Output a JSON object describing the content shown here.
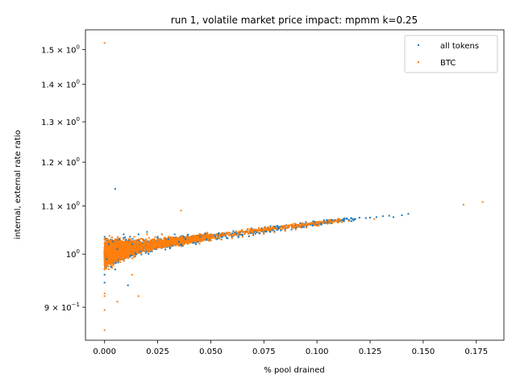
{
  "chart_data": {
    "type": "scatter",
    "title": "run 1, volatile market price impact: mpmm k=0.25",
    "xlabel": "% pool drained",
    "ylabel": "internal, external rate ratio",
    "xlim": [
      -0.009,
      0.188
    ],
    "ylim": [
      0.843,
      1.56
    ],
    "yscale": "log",
    "grid": false,
    "legend_position": "upper right",
    "x_ticks": [
      {
        "value": 0.0,
        "label": "0.000"
      },
      {
        "value": 0.025,
        "label": "0.025"
      },
      {
        "value": 0.05,
        "label": "0.050"
      },
      {
        "value": 0.075,
        "label": "0.075"
      },
      {
        "value": 0.1,
        "label": "0.100"
      },
      {
        "value": 0.125,
        "label": "0.125"
      },
      {
        "value": 0.15,
        "label": "0.150"
      },
      {
        "value": 0.175,
        "label": "0.175"
      }
    ],
    "y_ticks": [
      {
        "value": 0.9,
        "base": "9",
        "exp": "−1"
      },
      {
        "value": 1.0,
        "base": "10",
        "exp": "0"
      },
      {
        "value": 1.1,
        "base": "1.1",
        "exp": "0"
      },
      {
        "value": 1.2,
        "base": "1.2",
        "exp": "0"
      },
      {
        "value": 1.3,
        "base": "1.3",
        "exp": "0"
      },
      {
        "value": 1.4,
        "base": "1.4",
        "exp": "0"
      },
      {
        "value": 1.5,
        "base": "1.5",
        "exp": "0"
      }
    ],
    "series": [
      {
        "name": "all tokens",
        "color": "#1f77b4",
        "points": [
          [
            0.0,
            1.0
          ],
          [
            0.0,
            0.96
          ],
          [
            0.0,
            1.035
          ],
          [
            0.0,
            0.945
          ],
          [
            0.0,
            1.03
          ],
          [
            0.001,
            0.99
          ],
          [
            0.002,
            1.02
          ],
          [
            0.003,
            0.975
          ],
          [
            0.004,
            1.025
          ],
          [
            0.005,
            1.138
          ],
          [
            0.005,
            0.97
          ],
          [
            0.006,
            1.01
          ],
          [
            0.007,
            1.03
          ],
          [
            0.008,
            0.99
          ],
          [
            0.009,
            1.04
          ],
          [
            0.01,
            1.0
          ],
          [
            0.011,
            0.94
          ],
          [
            0.012,
            1.035
          ],
          [
            0.013,
            1.02
          ],
          [
            0.015,
            1.0
          ],
          [
            0.016,
            1.04
          ],
          [
            0.018,
            1.03
          ],
          [
            0.02,
            1.045
          ],
          [
            0.022,
            1.02
          ],
          [
            0.025,
            1.035
          ],
          [
            0.027,
            1.04
          ],
          [
            0.03,
            1.03
          ],
          [
            0.033,
            1.04
          ],
          [
            0.035,
            1.025
          ],
          [
            0.038,
            1.03
          ],
          [
            0.04,
            1.03
          ],
          [
            0.043,
            1.02
          ],
          [
            0.045,
            1.035
          ],
          [
            0.048,
            1.03
          ],
          [
            0.05,
            1.028
          ],
          [
            0.053,
            1.03
          ],
          [
            0.055,
            1.03
          ],
          [
            0.058,
            1.032
          ],
          [
            0.06,
            1.035
          ],
          [
            0.063,
            1.034
          ],
          [
            0.065,
            1.038
          ],
          [
            0.068,
            1.036
          ],
          [
            0.07,
            1.04
          ],
          [
            0.073,
            1.042
          ],
          [
            0.075,
            1.042
          ],
          [
            0.078,
            1.045
          ],
          [
            0.08,
            1.046
          ],
          [
            0.083,
            1.048
          ],
          [
            0.085,
            1.05
          ],
          [
            0.088,
            1.05
          ],
          [
            0.09,
            1.053
          ],
          [
            0.093,
            1.055
          ],
          [
            0.095,
            1.056
          ],
          [
            0.098,
            1.058
          ],
          [
            0.1,
            1.06
          ],
          [
            0.102,
            1.062
          ],
          [
            0.105,
            1.065
          ],
          [
            0.107,
            1.07
          ],
          [
            0.11,
            1.066
          ],
          [
            0.112,
            1.07
          ],
          [
            0.115,
            1.07
          ],
          [
            0.118,
            1.072
          ],
          [
            0.12,
            1.075
          ],
          [
            0.123,
            1.074
          ],
          [
            0.125,
            1.075
          ],
          [
            0.128,
            1.076
          ],
          [
            0.131,
            1.078
          ],
          [
            0.134,
            1.079
          ],
          [
            0.136,
            1.076
          ],
          [
            0.14,
            1.08
          ],
          [
            0.143,
            1.083
          ]
        ]
      },
      {
        "name": "BTC",
        "color": "#ff7f0e",
        "points": [
          [
            0.0,
            1.52
          ],
          [
            0.0,
            0.86
          ],
          [
            0.0,
            0.895
          ],
          [
            0.0,
            0.92
          ],
          [
            0.0,
            0.925
          ],
          [
            0.0,
            1.0
          ],
          [
            0.0,
            0.97
          ],
          [
            0.0,
            1.02
          ],
          [
            0.0,
            0.98
          ],
          [
            0.0,
            1.03
          ],
          [
            0.002,
            1.01
          ],
          [
            0.003,
            0.98
          ],
          [
            0.004,
            1.0
          ],
          [
            0.005,
            1.02
          ],
          [
            0.006,
            0.91
          ],
          [
            0.007,
            1.01
          ],
          [
            0.008,
            0.99
          ],
          [
            0.009,
            1.03
          ],
          [
            0.01,
            1.0
          ],
          [
            0.012,
            1.02
          ],
          [
            0.013,
            0.96
          ],
          [
            0.014,
            1.035
          ],
          [
            0.015,
            1.01
          ],
          [
            0.016,
            0.92
          ],
          [
            0.018,
            1.03
          ],
          [
            0.02,
            1.04
          ],
          [
            0.022,
            1.02
          ],
          [
            0.025,
            1.03
          ],
          [
            0.027,
            1.04
          ],
          [
            0.03,
            1.035
          ],
          [
            0.033,
            1.02
          ],
          [
            0.036,
            1.09
          ],
          [
            0.04,
            1.03
          ],
          [
            0.045,
            1.03
          ],
          [
            0.05,
            1.027
          ],
          [
            0.055,
            1.029
          ],
          [
            0.06,
            1.032
          ],
          [
            0.065,
            1.035
          ],
          [
            0.07,
            1.038
          ],
          [
            0.075,
            1.041
          ],
          [
            0.08,
            1.044
          ],
          [
            0.085,
            1.047
          ],
          [
            0.09,
            1.05
          ],
          [
            0.095,
            1.054
          ],
          [
            0.1,
            1.058
          ],
          [
            0.105,
            1.062
          ],
          [
            0.11,
            1.065
          ],
          [
            0.115,
            1.068
          ],
          [
            0.127,
            1.072
          ],
          [
            0.169,
            1.103
          ],
          [
            0.178,
            1.109
          ]
        ]
      }
    ]
  }
}
